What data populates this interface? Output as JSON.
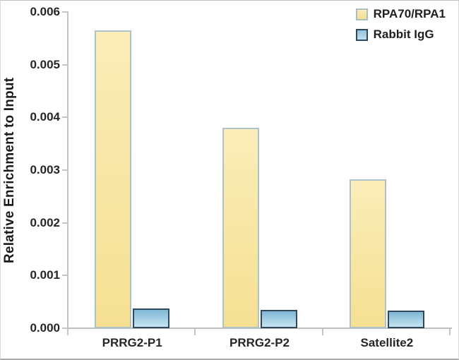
{
  "chart_data": {
    "type": "bar",
    "title": "",
    "ylabel": "Relative Enrichment to Input",
    "xlabel": "",
    "categories": [
      "PRRG2-P1",
      "PRRG2-P2",
      "Satellite2"
    ],
    "series": [
      {
        "name": "RPA70/RPA1",
        "fill_top": "#FAEDB8",
        "fill_bottom": "#F5E092",
        "border": "#AEC2CC",
        "values": [
          0.00565,
          0.0038,
          0.00282
        ]
      },
      {
        "name": "Rabbit IgG",
        "fill_top": "#7FB7D5",
        "fill_bottom": "#C6E4F1",
        "border": "#31485C",
        "values": [
          0.00038,
          0.00035,
          0.00033
        ]
      }
    ],
    "ylim": [
      0,
      0.006
    ],
    "ytick_step": 0.001,
    "ytick_decimals": 3,
    "ytick_labels": [
      "0.000",
      "0.001",
      "0.002",
      "0.003",
      "0.004",
      "0.005",
      "0.006"
    ],
    "grid": "off",
    "legend_position": "top-right"
  }
}
